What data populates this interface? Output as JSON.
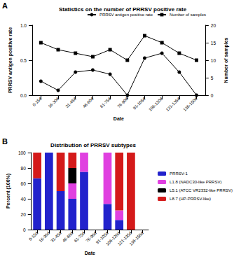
{
  "chart_data": [
    {
      "type": "line",
      "annotation": "A",
      "title": "Statistics on the number of PRRSV positive rate",
      "categories": [
        "0-15d",
        "16-30d",
        "31-45d",
        "46-60d",
        "61-75d",
        "76-90d",
        "91-105d",
        "106-120d",
        "121-135d",
        "136-150d"
      ],
      "x_label": "Date",
      "y_label": "PRRSV antigen positive rate",
      "y2_label": "Number of samples",
      "ylim": [
        0,
        1
      ],
      "yticks": [
        {
          "value": 0,
          "label": "0.0"
        },
        {
          "value": 0.5,
          "label": "0.5"
        },
        {
          "value": 1,
          "label": "1.0"
        }
      ],
      "y2lim": [
        0,
        20
      ],
      "y2ticks": [
        0,
        5,
        10,
        15,
        20
      ],
      "grid": false,
      "legend": "upper right",
      "series": [
        {
          "name": "PRRSV antigen positive rate",
          "color": "#000000",
          "marker": "circle",
          "values": [
            0.2,
            0.07,
            0.33,
            0.36,
            0.3,
            0.0,
            0.53,
            0.6,
            0.33,
            0.0
          ]
        },
        {
          "name": "Number of samples",
          "color": "#000000",
          "marker": "square",
          "axis": "y2",
          "values": [
            15,
            13,
            12,
            11,
            13,
            10,
            17,
            15,
            12,
            10
          ]
        }
      ]
    },
    {
      "type": "bar",
      "annotation": "B",
      "title": "Distribution of PRRSV subtypes",
      "categories": [
        "0-15d",
        "16-30d",
        "31-45d",
        "46-60d",
        "61-75d",
        "76-90d",
        "91-105d",
        "106-120d",
        "121-135d",
        "136-150d"
      ],
      "x_label": "Date",
      "y_label": "Percent (100%)",
      "ylim": [
        0,
        100
      ],
      "yticks": [
        0,
        20,
        40,
        60,
        80,
        100
      ],
      "stacked": true,
      "grid": false,
      "legend": "right",
      "series": [
        {
          "name": "PRRSV-1",
          "color": "#2222cc",
          "values": [
            66.7,
            100,
            50,
            40,
            75,
            0,
            33.3,
            12.5,
            0,
            0
          ]
        },
        {
          "name": "L1.8 (NADC30-like PRRSV)",
          "color": "#e040e0",
          "values": [
            0,
            0,
            0,
            20,
            25,
            0,
            66.7,
            12.5,
            0,
            0
          ]
        },
        {
          "name": "L5.1 (ATCC VR2332-like PRRSV)",
          "color": "#000000",
          "values": [
            0,
            0,
            0,
            20,
            0,
            0,
            0,
            0,
            0,
            0
          ]
        },
        {
          "name": "L8.7 (HP-PRRSV-like)",
          "color": "#d41a1a",
          "values": [
            33.3,
            0,
            50,
            20,
            0,
            0,
            0,
            75,
            100,
            0
          ]
        }
      ]
    }
  ]
}
